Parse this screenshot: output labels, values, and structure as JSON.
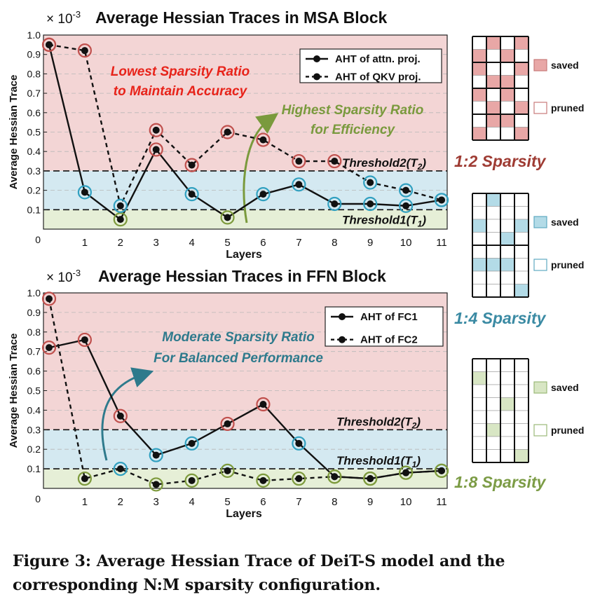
{
  "chart_data": [
    {
      "type": "line",
      "title": "Average Hessian Traces in MSA Block",
      "scale_label": "× 10",
      "scale_exponent": "-3",
      "xlabel": "Layers",
      "ylabel": "Average Hessian Trace",
      "x": [
        0,
        1,
        2,
        3,
        4,
        5,
        6,
        7,
        8,
        9,
        10,
        11
      ],
      "x_tick_labels": [
        "0",
        "1",
        "2",
        "3",
        "4",
        "5",
        "6",
        "7",
        "8",
        "9",
        "10",
        "11"
      ],
      "ylim": [
        0,
        1.0
      ],
      "y_ticks": [
        1.0,
        0.9,
        0.8,
        0.7,
        0.6,
        0.5,
        0.4,
        0.3,
        0.2,
        0.1
      ],
      "y_tick_labels": [
        "1.0",
        "0.9",
        "0.8",
        "0.7",
        "0.6",
        "0.5",
        "0.4",
        "0.3",
        "0.2",
        "0.1"
      ],
      "grid": true,
      "legend_position": "top-right",
      "series": [
        {
          "name": "AHT of attn. proj.",
          "style": "solid",
          "values": [
            0.95,
            0.19,
            0.05,
            0.41,
            0.18,
            0.06,
            0.18,
            0.23,
            0.13,
            0.13,
            0.12,
            0.15
          ]
        },
        {
          "name": "AHT of QKV proj.",
          "style": "dashed",
          "values": [
            0.95,
            0.92,
            0.12,
            0.51,
            0.33,
            0.5,
            0.46,
            0.35,
            0.35,
            0.24,
            0.2,
            0.15
          ]
        }
      ],
      "thresholds": [
        {
          "label": "Threshold2(T",
          "sub": "2",
          "close": ")",
          "value": 0.3
        },
        {
          "label": "Threshold1(T",
          "sub": "1",
          "close": ")",
          "value": 0.1
        }
      ],
      "annotations": [
        {
          "line1": "Lowest Sparsity Ratio",
          "line2": "to Maintain Accuracy",
          "color": "#e8231a"
        },
        {
          "line1": "Highest Sparsity Ratio",
          "line2": "for Efficiency",
          "color": "#7a9a3d"
        }
      ]
    },
    {
      "type": "line",
      "title": "Average Hessian Traces in FFN Block",
      "scale_label": "× 10",
      "scale_exponent": "-3",
      "xlabel": "Layers",
      "ylabel": "Average Hessian Trace",
      "x": [
        0,
        1,
        2,
        3,
        4,
        5,
        6,
        7,
        8,
        9,
        10,
        11
      ],
      "x_tick_labels": [
        "0",
        "1",
        "2",
        "3",
        "4",
        "5",
        "6",
        "7",
        "8",
        "9",
        "10",
        "11"
      ],
      "ylim": [
        0,
        1.0
      ],
      "y_ticks": [
        1.0,
        0.9,
        0.8,
        0.7,
        0.6,
        0.5,
        0.4,
        0.3,
        0.2,
        0.1
      ],
      "y_tick_labels": [
        "1.0",
        "0.9",
        "0.8",
        "0.7",
        "0.6",
        "0.5",
        "0.4",
        "0.3",
        "0.2",
        "0.1"
      ],
      "grid": true,
      "legend_position": "top-right",
      "series": [
        {
          "name": "AHT of FC1",
          "style": "solid",
          "values": [
            0.72,
            0.76,
            0.37,
            0.17,
            0.23,
            0.33,
            0.43,
            0.23,
            0.06,
            0.05,
            0.08,
            0.09
          ]
        },
        {
          "name": "AHT of FC2",
          "style": "dashed",
          "values": [
            0.97,
            0.05,
            0.1,
            0.02,
            0.04,
            0.09,
            0.04,
            0.05,
            0.06,
            0.05,
            0.08,
            0.09
          ]
        }
      ],
      "thresholds": [
        {
          "label": "Threshold2(T",
          "sub": "2",
          "close": ")",
          "value": 0.3
        },
        {
          "label": "Threshold1(T",
          "sub": "1",
          "close": ")",
          "value": 0.1
        }
      ],
      "annotations": [
        {
          "line1": "Moderate Sparsity Ratio",
          "line2": "For Balanced Performance",
          "color": "#2e7a8c"
        }
      ]
    }
  ],
  "zero_label": "0",
  "sparsity_panels": [
    {
      "label": "1:2 Sparsity",
      "color": "#9e3b33",
      "fill": "#e8a7a6",
      "stroke": "#c87a7a",
      "saved": "saved",
      "pruned": "pruned"
    },
    {
      "label": "1:4 Sparsity",
      "color": "#3a8aa3",
      "fill": "#b3dbe7",
      "stroke": "#5fa9c2",
      "saved": "saved",
      "pruned": "pruned"
    },
    {
      "label": "1:8 Sparsity",
      "color": "#7c9c46",
      "fill": "#d8e6c4",
      "stroke": "#9bb978",
      "saved": "saved",
      "pruned": "pruned"
    }
  ],
  "colors": {
    "red_zone": "#f3d5d5",
    "blue_zone": "#d4e9f1",
    "green_zone": "#e6efd7",
    "red_ring": "#c0504d",
    "blue_ring": "#31a0c0",
    "green_ring": "#7d9a3c"
  },
  "caption": "Figure 3: Average Hessian Trace of DeiT-S model and the corresponding N:M sparsity configuration."
}
